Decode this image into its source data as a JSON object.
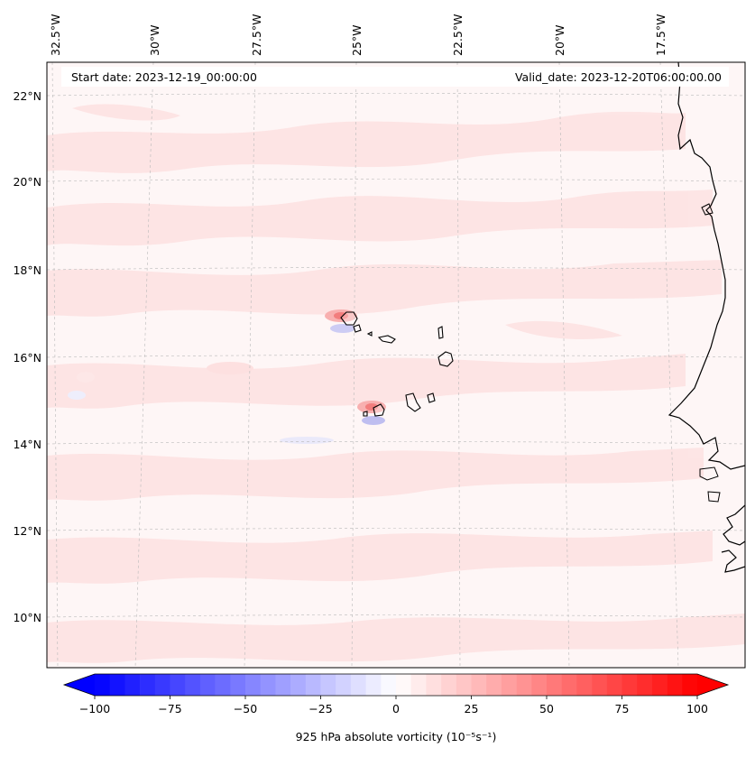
{
  "header": {
    "start_date": "Start date: 2023-12-19_00:00:00",
    "valid_date": "Valid_date: 2023-12-20T06:00:00.00"
  },
  "map": {
    "lon_labels": [
      "32.5°W",
      "30°W",
      "27.5°W",
      "25°W",
      "22.5°W",
      "20°W",
      "17.5°W"
    ],
    "lat_labels": [
      "22°N",
      "20°N",
      "18°N",
      "16°N",
      "14°N",
      "12°N",
      "10°N"
    ],
    "colors": {
      "background": "#fef6f6",
      "band": "#fde3e3",
      "coast": "#000000",
      "grid": "#b0b0b0"
    }
  },
  "colorbar": {
    "ticks": [
      "−100",
      "−75",
      "−50",
      "−25",
      "0",
      "25",
      "50",
      "75",
      "100"
    ],
    "label": "925 hPa absolute vorticity (10⁻⁵s⁻¹)",
    "cmap": "bwr",
    "vmin": -100,
    "vmax": 100
  }
}
